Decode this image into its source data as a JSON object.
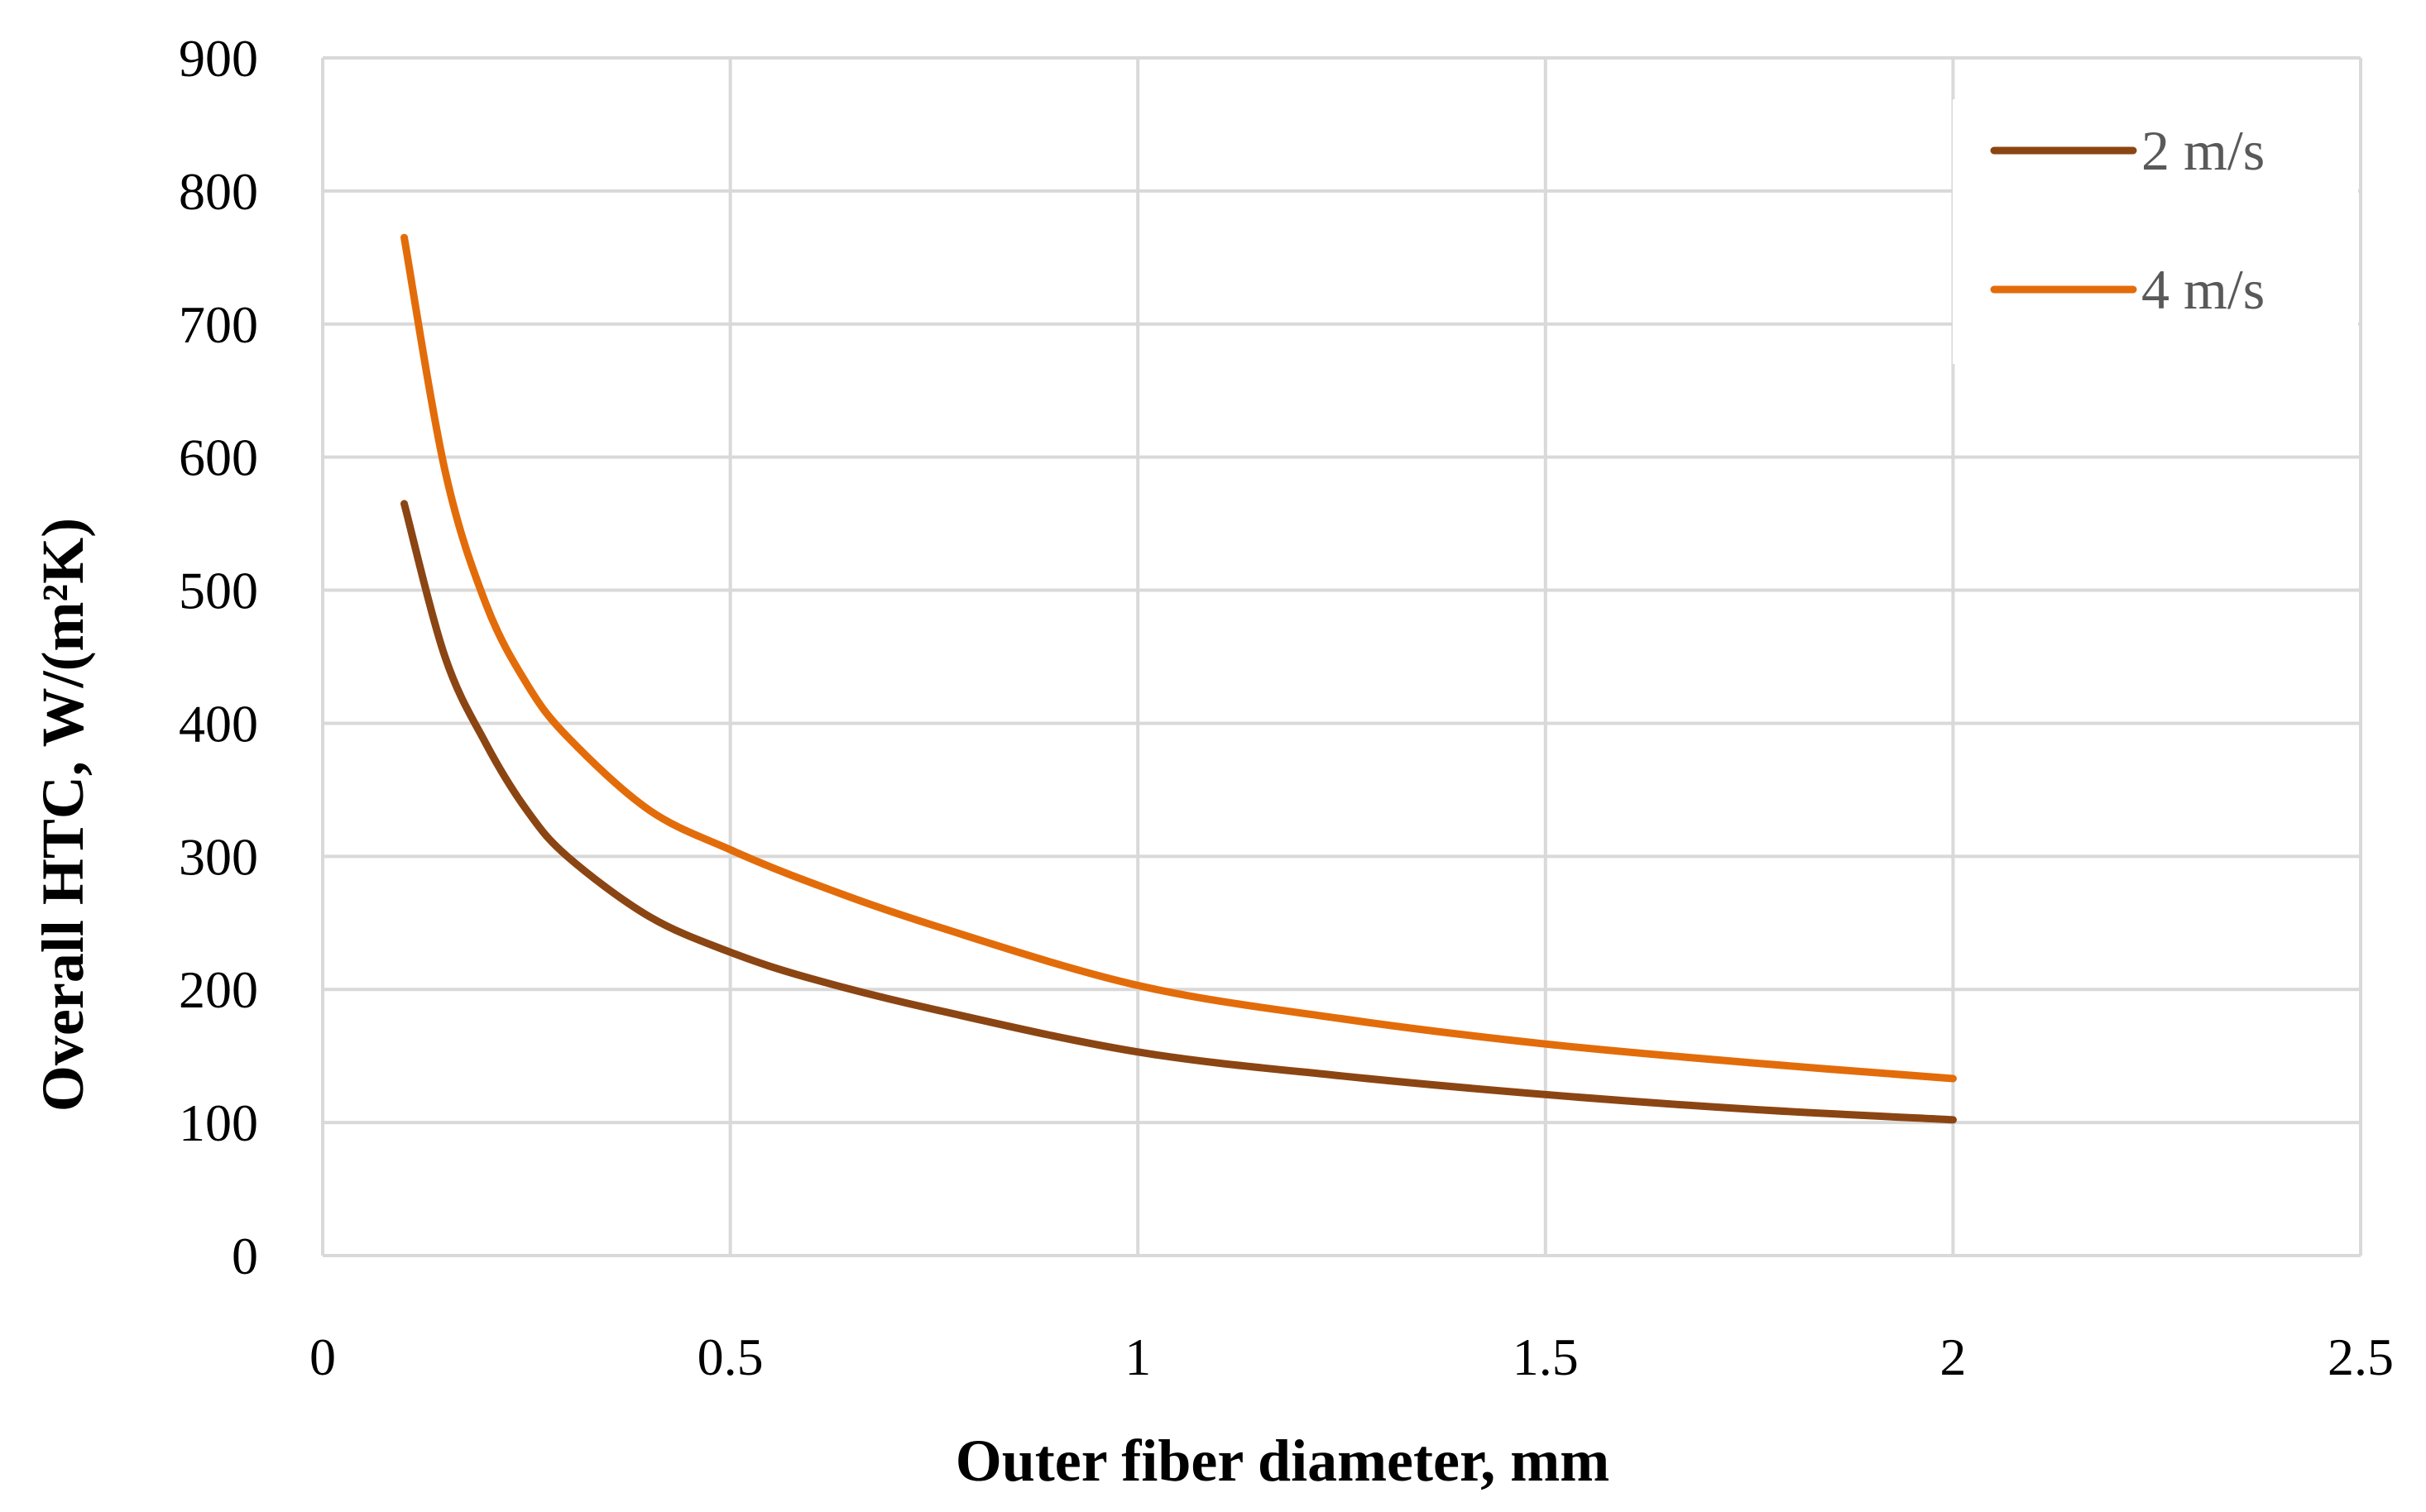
{
  "chart_data": {
    "type": "line",
    "xlabel": "Outer fiber diameter, mm",
    "ylabel": "Overall HTC, W/(m²K)",
    "xlim": [
      0,
      2.5
    ],
    "ylim": [
      0,
      900
    ],
    "x_ticks": [
      "0",
      "0.5",
      "1",
      "1.5",
      "2",
      "2.5"
    ],
    "y_ticks": [
      "0",
      "100",
      "200",
      "300",
      "400",
      "500",
      "600",
      "700",
      "800",
      "900"
    ],
    "grid": true,
    "legend_position": "top-right",
    "x": [
      0.1,
      0.15,
      0.2,
      0.25,
      0.3,
      0.4,
      0.5,
      0.6,
      0.75,
      1.0,
      1.25,
      1.5,
      1.75,
      2.0
    ],
    "series": [
      {
        "name": "2 m/s",
        "color": "#8B4513",
        "values": [
          565,
          450,
          385,
          335,
          300,
          255,
          228,
          208,
          185,
          153,
          135,
          121,
          110,
          102
        ]
      },
      {
        "name": "4 m/s",
        "color": "#E36C0A",
        "values": [
          765,
          590,
          490,
          430,
          390,
          335,
          305,
          280,
          248,
          203,
          178,
          159,
          145,
          133
        ]
      }
    ]
  }
}
